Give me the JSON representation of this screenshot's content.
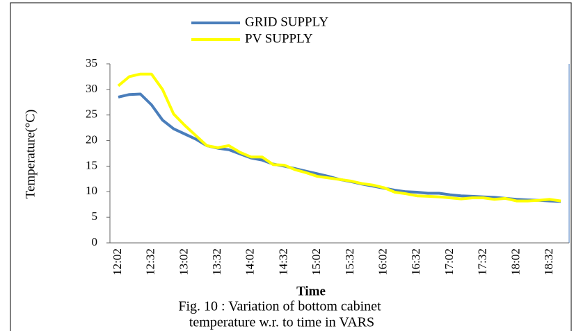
{
  "chart_data": {
    "type": "line",
    "caption_lines": [
      "Fig. 10 : Variation of bottom cabinet",
      "temperature w.r. to time in VARS"
    ],
    "x_label": "Time",
    "y_label": "Temperature(°C)",
    "categories": [
      "12:02",
      null,
      null,
      "12:32",
      null,
      null,
      "13:02",
      null,
      null,
      "13:32",
      null,
      null,
      "14:02",
      null,
      null,
      "14:32",
      null,
      null,
      "15:02",
      null,
      null,
      "15:32",
      null,
      null,
      "16:02",
      null,
      null,
      "16:32",
      null,
      null,
      "17:02",
      null,
      null,
      "17:32",
      null,
      null,
      "18:02",
      null,
      null,
      "18:32",
      null
    ],
    "series": [
      {
        "name": "GRID SUPPLY",
        "color": "#4a7ebb",
        "values": [
          28.5,
          29,
          29.1,
          27,
          24,
          22.3,
          21.3,
          20.3,
          19,
          18.5,
          18.2,
          17.4,
          16.6,
          16.2,
          15.4,
          15.0,
          14.5,
          14.0,
          13.5,
          13.0,
          12.4,
          12.0,
          11.5,
          11.1,
          10.7,
          10.3,
          10.0,
          9.9,
          9.7,
          9.7,
          9.4,
          9.2,
          9.1,
          9.0,
          8.9,
          8.7,
          8.5,
          8.4,
          8.3,
          8.2,
          8.1
        ]
      },
      {
        "name": "PV SUPPLY",
        "color": "#ffff00",
        "values": [
          30.7,
          32.5,
          33,
          33,
          30,
          25.2,
          23,
          21,
          19,
          18.6,
          19,
          17.7,
          16.8,
          16.8,
          15.3,
          15.2,
          14.3,
          13.7,
          13.0,
          12.7,
          12.4,
          12.1,
          11.6,
          11.3,
          10.8,
          9.9,
          9.6,
          9.2,
          9.1,
          9.0,
          8.8,
          8.6,
          8.8,
          8.8,
          8.5,
          8.7,
          8.2,
          8.2,
          8.3,
          8.5,
          8.2
        ]
      }
    ],
    "ylim": [
      0,
      35
    ],
    "yticks": [
      0,
      5,
      10,
      15,
      20,
      25,
      30,
      35
    ],
    "grid": false
  }
}
